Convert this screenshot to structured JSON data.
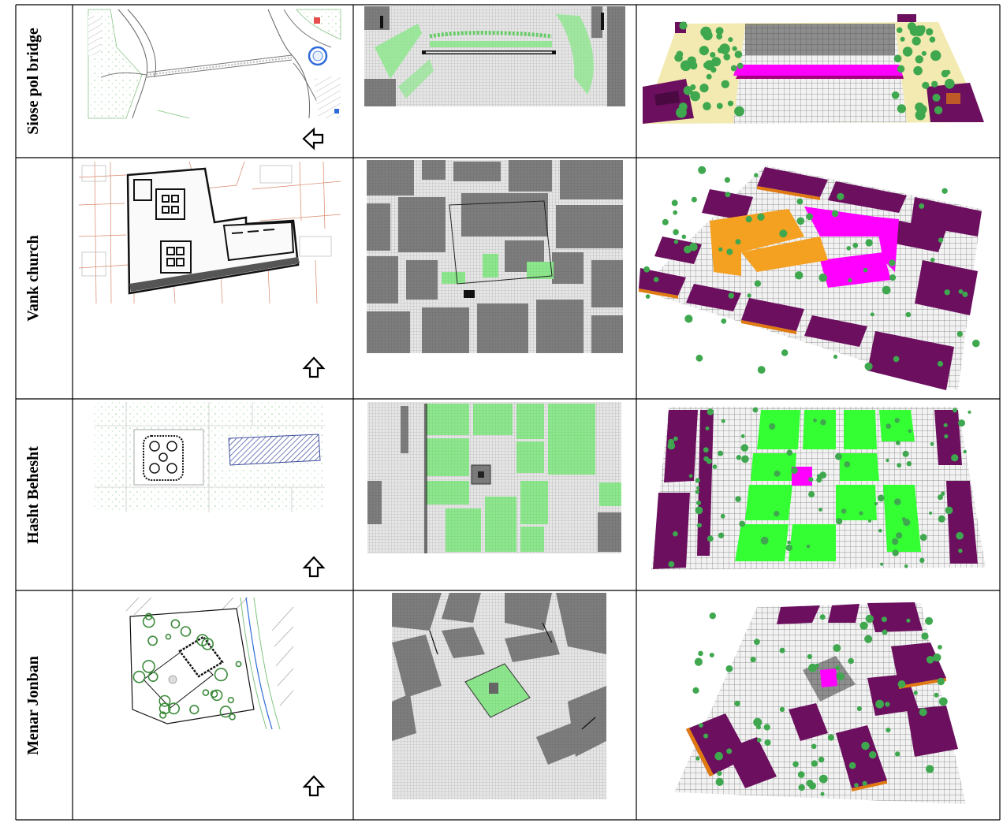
{
  "rows": [
    {
      "label": "Siose pol bridge",
      "north_arrow": "left"
    },
    {
      "label": "Vank church",
      "north_arrow": "up"
    },
    {
      "label": "Hasht Behesht",
      "north_arrow": "up"
    },
    {
      "label": "Menar Jonban",
      "north_arrow": "up"
    }
  ],
  "colors": {
    "building_3d": "#6b0f5e",
    "building_edge": "#e07a10",
    "landmark": "#ff00ff",
    "landmark_secondary": "#f4a020",
    "vegetation": "#22dd22",
    "tree": "#3fa84f",
    "grid_building": "#808080",
    "grid_ground": "#d4d4d4",
    "ground_sand": "#f2eab0",
    "water_3d": "#2a2a2a",
    "plan_line": "#222222",
    "plan_green": "#7fc47f",
    "plan_orange": "#d9886a",
    "plan_blue": "#2f6bd8",
    "plan_red": "#e02020"
  },
  "icons": {
    "north_arrow": "hollow-arrow-icon"
  }
}
